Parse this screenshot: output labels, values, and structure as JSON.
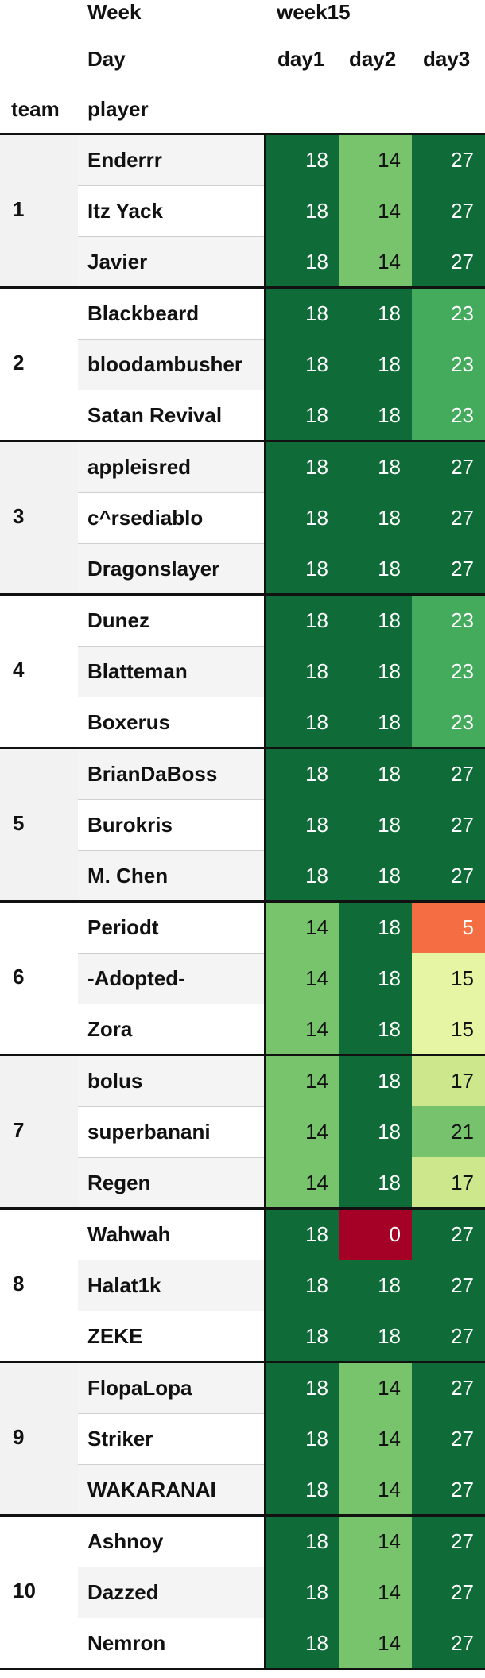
{
  "header": {
    "week_label": "Week",
    "week_value": "week15",
    "day_label": "Day",
    "days": [
      "day1",
      "day2",
      "day3"
    ],
    "team_label": "team",
    "player_label": "player"
  },
  "colors": {
    "0": "#a50026",
    "5": "#f46d43",
    "14": "#78c46c",
    "15": "#e6f5a3",
    "17": "#cde88c",
    "18": "#0f6b37",
    "21": "#77c26c",
    "23": "#44ab5d",
    "27": "#0f6b37"
  },
  "chart_data": {
    "type": "heatmap",
    "columns": [
      "day1",
      "day2",
      "day3"
    ],
    "teams": [
      {
        "team": "1",
        "players": [
          {
            "name": "Enderrr",
            "values": [
              18,
              14,
              27
            ]
          },
          {
            "name": "Itz Yack",
            "values": [
              18,
              14,
              27
            ]
          },
          {
            "name": "Javier",
            "values": [
              18,
              14,
              27
            ]
          }
        ]
      },
      {
        "team": "2",
        "players": [
          {
            "name": "Blackbeard",
            "values": [
              18,
              18,
              23
            ]
          },
          {
            "name": "bloodambusher",
            "values": [
              18,
              18,
              23
            ]
          },
          {
            "name": "Satan Revival",
            "values": [
              18,
              18,
              23
            ]
          }
        ]
      },
      {
        "team": "3",
        "players": [
          {
            "name": "appleisred",
            "values": [
              18,
              18,
              27
            ]
          },
          {
            "name": "c^rsediablo",
            "values": [
              18,
              18,
              27
            ]
          },
          {
            "name": "Dragonslayer",
            "values": [
              18,
              18,
              27
            ]
          }
        ]
      },
      {
        "team": "4",
        "players": [
          {
            "name": "Dunez",
            "values": [
              18,
              18,
              23
            ]
          },
          {
            "name": "Blatteman",
            "values": [
              18,
              18,
              23
            ]
          },
          {
            "name": "Boxerus",
            "values": [
              18,
              18,
              23
            ]
          }
        ]
      },
      {
        "team": "5",
        "players": [
          {
            "name": "BrianDaBoss",
            "values": [
              18,
              18,
              27
            ]
          },
          {
            "name": "Burokris",
            "values": [
              18,
              18,
              27
            ]
          },
          {
            "name": "M. Chen",
            "values": [
              18,
              18,
              27
            ]
          }
        ]
      },
      {
        "team": "6",
        "players": [
          {
            "name": "Periodt",
            "values": [
              14,
              18,
              5
            ]
          },
          {
            "name": "-Adopted-",
            "values": [
              14,
              18,
              15
            ]
          },
          {
            "name": "Zora",
            "values": [
              14,
              18,
              15
            ]
          }
        ]
      },
      {
        "team": "7",
        "players": [
          {
            "name": "bolus",
            "values": [
              14,
              18,
              17
            ]
          },
          {
            "name": "superbanani",
            "values": [
              14,
              18,
              21
            ]
          },
          {
            "name": "Regen",
            "values": [
              14,
              18,
              17
            ]
          }
        ]
      },
      {
        "team": "8",
        "players": [
          {
            "name": "Wahwah",
            "values": [
              18,
              0,
              27
            ]
          },
          {
            "name": "Halat1k",
            "values": [
              18,
              18,
              27
            ]
          },
          {
            "name": "ZEKE",
            "values": [
              18,
              18,
              27
            ]
          }
        ]
      },
      {
        "team": "9",
        "players": [
          {
            "name": "FlopaLopa",
            "values": [
              18,
              14,
              27
            ]
          },
          {
            "name": "Striker",
            "values": [
              18,
              14,
              27
            ]
          },
          {
            "name": "WAKARANAI",
            "values": [
              18,
              14,
              27
            ]
          }
        ]
      },
      {
        "team": "10",
        "players": [
          {
            "name": "Ashnoy",
            "values": [
              18,
              14,
              27
            ]
          },
          {
            "name": "Dazzed",
            "values": [
              18,
              14,
              27
            ]
          },
          {
            "name": "Nemron",
            "values": [
              18,
              14,
              27
            ]
          }
        ]
      }
    ]
  }
}
